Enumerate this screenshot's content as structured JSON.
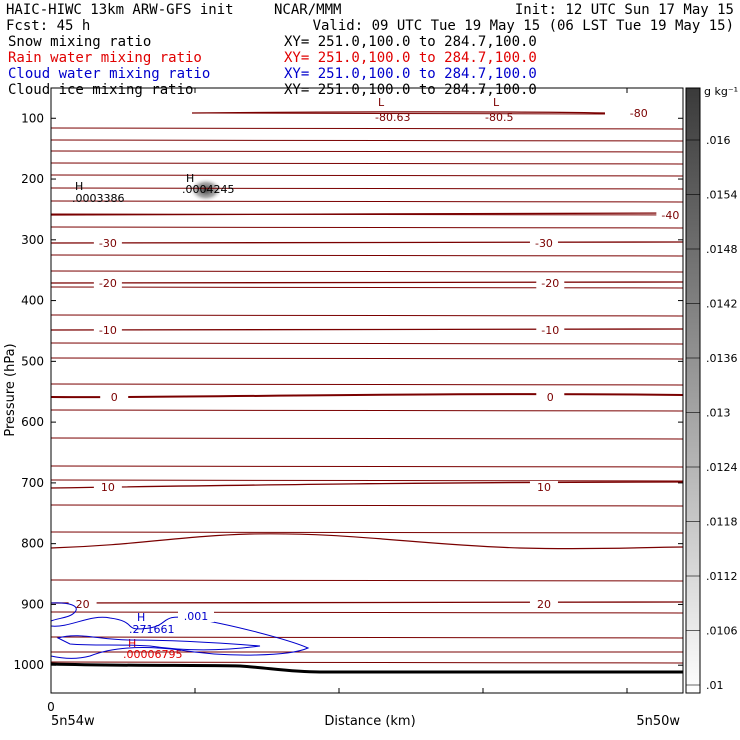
{
  "header": {
    "title_left": "HAIC-HIWC 13km ARW-GFS init",
    "org": "NCAR/MMM",
    "init": "Init: 12 UTC Sun 17 May 15",
    "fcst": "Fcst:   45 h",
    "valid": "Valid: 09 UTC Tue 19 May 15 (06 LST Tue 19 May 15)"
  },
  "fields": [
    {
      "name": "Snow mixing ratio",
      "xy": "XY= 251.0,100.0 to 284.7,100.0",
      "color": "#000000"
    },
    {
      "name": "Rain water mixing ratio",
      "xy": "XY= 251.0,100.0 to 284.7,100.0",
      "color": "#e00000"
    },
    {
      "name": "Cloud water mixing ratio",
      "xy": "XY= 251.0,100.0 to 284.7,100.0",
      "color": "#0000cc"
    },
    {
      "name": "Cloud ice mixing ratio",
      "xy": "XY= 251.0,100.0 to 284.7,100.0",
      "color": "#000000"
    }
  ],
  "colorbar": {
    "unit": "g kg⁻¹",
    "labels": [
      ".016",
      ".0154",
      ".0148",
      ".0142",
      ".0136",
      ".013",
      ".0124",
      ".0118",
      ".0112",
      ".0106",
      ".01"
    ],
    "values": [
      0.016,
      0.0154,
      0.0148,
      0.0142,
      0.0136,
      0.013,
      0.0124,
      0.0118,
      0.0112,
      0.0106,
      0.01
    ]
  },
  "axes": {
    "ylabel": "Pressure (hPa)",
    "xlabel": "Distance (km)",
    "x_left_tick": "0",
    "x_left_label": "5n54w",
    "x_right_label": "5n50w"
  },
  "chart_data": {
    "type": "contour",
    "yticks": [
      100,
      200,
      300,
      400,
      500,
      600,
      700,
      800,
      900,
      1000
    ],
    "ylim": [
      50,
      1050
    ],
    "temperature_contours": [
      {
        "level": "-80",
        "pressure": 93,
        "labels": [
          {
            "text": "-80",
            "x": 0.93
          }
        ]
      },
      {
        "level": "-40",
        "pressure": 225,
        "labels": [
          {
            "text": "-40",
            "x": 0.98
          }
        ]
      },
      {
        "level": "-30",
        "pressure": 305,
        "labels": [
          {
            "text": "-30",
            "x": 0.09
          },
          {
            "text": "-30",
            "x": 0.78
          }
        ]
      },
      {
        "level": "-20",
        "pressure": 375,
        "labels": [
          {
            "text": "-20",
            "x": 0.09
          },
          {
            "text": "-20",
            "x": 0.79
          }
        ]
      },
      {
        "level": "-10",
        "pressure": 447,
        "labels": [
          {
            "text": "-10",
            "x": 0.09
          },
          {
            "text": "-10",
            "x": 0.79
          }
        ]
      },
      {
        "level": "0",
        "pressure": 557,
        "labels": [
          {
            "text": "0",
            "x": 0.1
          },
          {
            "text": "0",
            "x": 0.79
          }
        ]
      },
      {
        "level": "10",
        "pressure": 708,
        "labels": [
          {
            "text": "10",
            "x": 0.09
          },
          {
            "text": "10",
            "x": 0.78
          }
        ]
      },
      {
        "level": "20",
        "pressure": 898,
        "labels": [
          {
            "text": "20",
            "x": 0.05
          },
          {
            "text": "20",
            "x": 0.78
          }
        ]
      }
    ],
    "extrema": [
      {
        "type": "L",
        "value": "-80.63",
        "color": "#7a0000"
      },
      {
        "type": "L",
        "value": "-80.5",
        "color": "#7a0000"
      },
      {
        "type": "H",
        "value": ".0003386",
        "color": "#000000"
      },
      {
        "type": "H",
        "value": ".0004245",
        "color": "#000000"
      },
      {
        "type": "H",
        "value": ".271661",
        "color": "#0000cc"
      },
      {
        "type": "H",
        "value": ".00006795",
        "color": "#e00000"
      }
    ],
    "cloud_water_contour": ".001"
  }
}
